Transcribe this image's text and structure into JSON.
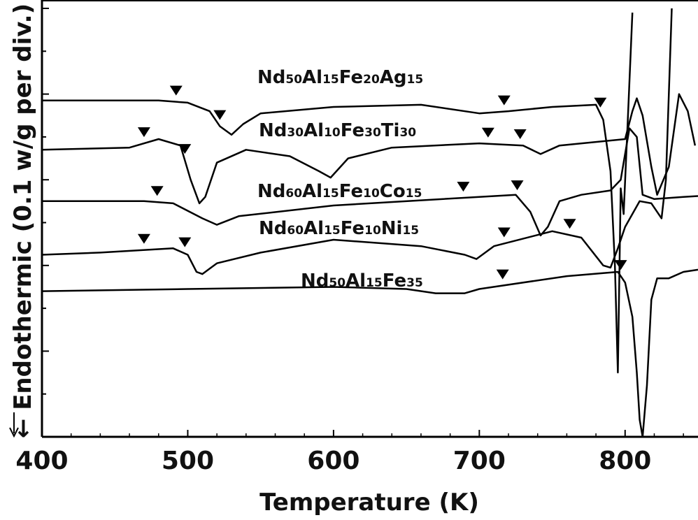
{
  "chart_data": {
    "type": "line",
    "xlabel": "Temperature (K)",
    "ylabel": "← Endothermic (0.1 w/g per div.)",
    "xlim": [
      400,
      850
    ],
    "x_ticks": [
      "400",
      "500",
      "600",
      "700",
      "800"
    ],
    "y_units": "vertical offset (divisions); curves stacked for clarity, 1 div = 0.1 W/g",
    "ylim": [
      0,
      10
    ],
    "grid": false,
    "legend": "none (curves labeled inline)",
    "line_color": "#000000",
    "marker": "inverted-triangle",
    "series": [
      {
        "name": "Nd50Al15Fe20Ag15",
        "label_parts": [
          [
            "Nd",
            ""
          ],
          [
            "50",
            "s"
          ],
          [
            "Al",
            ""
          ],
          [
            "15",
            "s"
          ],
          [
            "Fe",
            ""
          ],
          [
            "20",
            "s"
          ],
          [
            "Ag",
            ""
          ],
          [
            "15",
            "s"
          ]
        ],
        "markers": [
          492,
          522,
          717,
          783
        ],
        "points": [
          [
            400,
            7.85
          ],
          [
            480,
            7.85
          ],
          [
            500,
            7.8
          ],
          [
            515,
            7.6
          ],
          [
            522,
            7.25
          ],
          [
            530,
            7.05
          ],
          [
            538,
            7.3
          ],
          [
            550,
            7.55
          ],
          [
            600,
            7.7
          ],
          [
            660,
            7.75
          ],
          [
            700,
            7.55
          ],
          [
            720,
            7.6
          ],
          [
            750,
            7.7
          ],
          [
            780,
            7.75
          ],
          [
            785,
            7.4
          ],
          [
            790,
            6.2
          ],
          [
            793,
            4.0
          ],
          [
            795,
            1.5
          ],
          [
            797,
            5.8
          ],
          [
            799,
            5.2
          ],
          [
            802,
            7.5
          ],
          [
            805,
            9.9
          ]
        ]
      },
      {
        "name": "Nd30Al10Fe30Ti30",
        "label_parts": [
          [
            "Nd",
            ""
          ],
          [
            "30",
            "s"
          ],
          [
            "Al",
            ""
          ],
          [
            "10",
            "s"
          ],
          [
            "Fe",
            ""
          ],
          [
            "30",
            "s"
          ],
          [
            "Ti",
            ""
          ],
          [
            "30",
            "s"
          ]
        ],
        "markers": [
          470,
          498,
          706,
          728
        ],
        "points": [
          [
            400,
            6.7
          ],
          [
            460,
            6.75
          ],
          [
            480,
            6.95
          ],
          [
            495,
            6.8
          ],
          [
            502,
            6.0
          ],
          [
            508,
            5.45
          ],
          [
            512,
            5.6
          ],
          [
            520,
            6.4
          ],
          [
            540,
            6.7
          ],
          [
            570,
            6.55
          ],
          [
            590,
            6.2
          ],
          [
            598,
            6.05
          ],
          [
            610,
            6.5
          ],
          [
            640,
            6.75
          ],
          [
            700,
            6.85
          ],
          [
            730,
            6.8
          ],
          [
            742,
            6.6
          ],
          [
            755,
            6.8
          ],
          [
            800,
            6.95
          ],
          [
            805,
            7.6
          ],
          [
            808,
            7.9
          ],
          [
            812,
            7.5
          ],
          [
            818,
            6.3
          ],
          [
            822,
            5.65
          ],
          [
            830,
            6.3
          ],
          [
            837,
            8.0
          ],
          [
            843,
            7.6
          ],
          [
            848,
            6.8
          ]
        ]
      },
      {
        "name": "Nd60Al15Fe10Co15",
        "label_parts": [
          [
            "Nd",
            ""
          ],
          [
            "60",
            "s"
          ],
          [
            "Al",
            ""
          ],
          [
            "15",
            "s"
          ],
          [
            "Fe",
            ""
          ],
          [
            "10",
            "s"
          ],
          [
            "Co",
            ""
          ],
          [
            "15",
            "s"
          ]
        ],
        "markers": [
          479,
          689,
          726
        ],
        "points": [
          [
            400,
            5.5
          ],
          [
            470,
            5.5
          ],
          [
            490,
            5.45
          ],
          [
            510,
            5.1
          ],
          [
            520,
            4.95
          ],
          [
            535,
            5.15
          ],
          [
            600,
            5.4
          ],
          [
            700,
            5.6
          ],
          [
            725,
            5.65
          ],
          [
            735,
            5.25
          ],
          [
            742,
            4.7
          ],
          [
            747,
            4.9
          ],
          [
            755,
            5.5
          ],
          [
            770,
            5.65
          ],
          [
            790,
            5.75
          ],
          [
            797,
            6.0
          ],
          [
            803,
            7.2
          ],
          [
            808,
            7.0
          ],
          [
            812,
            5.65
          ],
          [
            820,
            5.55
          ],
          [
            840,
            5.6
          ],
          [
            850,
            5.62
          ]
        ]
      },
      {
        "name": "Nd60Al15Fe10Ni15",
        "label_parts": [
          [
            "Nd",
            ""
          ],
          [
            "60",
            "s"
          ],
          [
            "Al",
            ""
          ],
          [
            "15",
            "s"
          ],
          [
            "Fe",
            ""
          ],
          [
            "10",
            "s"
          ],
          [
            "Ni",
            ""
          ],
          [
            "15",
            "s"
          ]
        ],
        "markers": [
          470,
          498,
          717,
          762
        ],
        "points": [
          [
            400,
            4.25
          ],
          [
            440,
            4.3
          ],
          [
            490,
            4.4
          ],
          [
            500,
            4.25
          ],
          [
            506,
            3.85
          ],
          [
            510,
            3.8
          ],
          [
            520,
            4.05
          ],
          [
            550,
            4.3
          ],
          [
            600,
            4.6
          ],
          [
            660,
            4.45
          ],
          [
            690,
            4.25
          ],
          [
            698,
            4.15
          ],
          [
            710,
            4.45
          ],
          [
            750,
            4.8
          ],
          [
            770,
            4.65
          ],
          [
            785,
            4.0
          ],
          [
            790,
            3.95
          ],
          [
            795,
            4.4
          ],
          [
            800,
            4.9
          ],
          [
            810,
            5.5
          ],
          [
            818,
            5.45
          ],
          [
            825,
            5.1
          ],
          [
            828,
            6.0
          ],
          [
            830,
            8.0
          ],
          [
            832,
            10.0
          ]
        ]
      },
      {
        "name": "Nd50Al15Fe35",
        "label_parts": [
          [
            "Nd",
            ""
          ],
          [
            "50",
            "s"
          ],
          [
            "Al",
            ""
          ],
          [
            "15",
            "s"
          ],
          [
            "Fe",
            ""
          ],
          [
            "35",
            "s"
          ]
        ],
        "markers": [
          716,
          797
        ],
        "points": [
          [
            400,
            3.4
          ],
          [
            500,
            3.45
          ],
          [
            600,
            3.5
          ],
          [
            650,
            3.45
          ],
          [
            670,
            3.35
          ],
          [
            690,
            3.35
          ],
          [
            700,
            3.45
          ],
          [
            760,
            3.75
          ],
          [
            795,
            3.85
          ],
          [
            800,
            3.6
          ],
          [
            805,
            2.8
          ],
          [
            808,
            1.5
          ],
          [
            810,
            0.4
          ],
          [
            812,
            0.0
          ],
          [
            815,
            1.2
          ],
          [
            818,
            3.2
          ],
          [
            822,
            3.7
          ],
          [
            830,
            3.7
          ],
          [
            840,
            3.85
          ],
          [
            850,
            3.9
          ]
        ]
      }
    ]
  }
}
